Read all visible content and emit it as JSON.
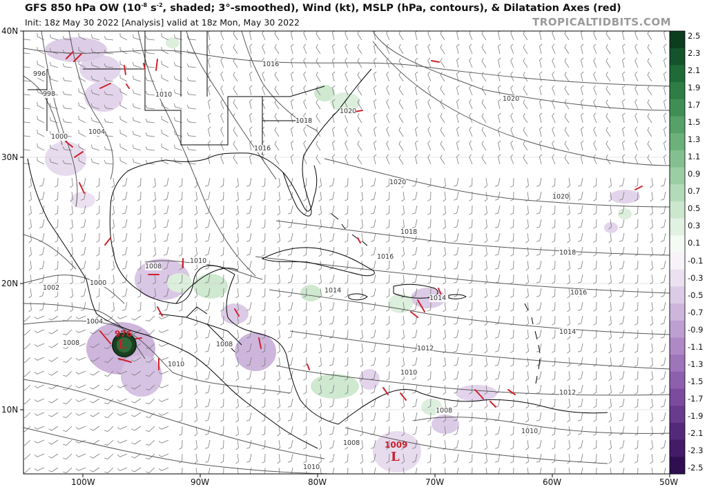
{
  "header": {
    "title_main": "GFS 850 hPa OW (10",
    "title_exp": "-8",
    "title_mid": " s",
    "title_exp2": "-2",
    "title_rest": ", shaded; 3°-smoothed), Wind (kt), MSLP (hPa, contours), & Dilatation Axes (red)",
    "subtitle": "Init: 18z May 30 2022  [Analysis]   valid at 18z Mon, May 30 2022",
    "brand": "TROPICALTIDBITS.COM"
  },
  "axes": {
    "lat_labels": [
      "40N",
      "30N",
      "20N",
      "10N"
    ],
    "lon_labels": [
      "100W",
      "90W",
      "80W",
      "70W",
      "60W",
      "50W"
    ]
  },
  "colorbar": {
    "labels": [
      "2.5",
      "2.3",
      "2.1",
      "1.9",
      "1.7",
      "1.5",
      "1.3",
      "1.1",
      "0.9",
      "0.7",
      "0.5",
      "0.3",
      "0.1",
      "-0.1",
      "-0.3",
      "-0.5",
      "-0.7",
      "-0.9",
      "-1.1",
      "-1.3",
      "-1.5",
      "-1.7",
      "-1.9",
      "-2.1",
      "-2.3",
      "-2.5"
    ],
    "positive_colors": [
      "#0b3d1e",
      "#14542b",
      "#1f6b37",
      "#2e7d45",
      "#3f8f55",
      "#55a167",
      "#6cb17a",
      "#84c08f",
      "#9ccea4",
      "#b4dbb9",
      "#cbe7ce",
      "#e1f1e2",
      "#f4faf4"
    ],
    "negative_colors": [
      "#f7f3f9",
      "#ebe1f0",
      "#dccbe6",
      "#cdb5dc",
      "#bd9fd1",
      "#ae89c6",
      "#9e74ba",
      "#8d60ad",
      "#7b4c9d",
      "#683b8c",
      "#55297a",
      "#431b67",
      "#2f0f52"
    ]
  },
  "pressure_labels": [
    {
      "text": "996"
    },
    {
      "text": "998"
    },
    {
      "text": "1000"
    },
    {
      "text": "1004"
    },
    {
      "text": "1010"
    },
    {
      "text": "1016"
    },
    {
      "text": "1018"
    },
    {
      "text": "1016"
    },
    {
      "text": "1020"
    },
    {
      "text": "1020"
    },
    {
      "text": "1020"
    },
    {
      "text": "1020"
    },
    {
      "text": "1018"
    },
    {
      "text": "1018"
    },
    {
      "text": "1016"
    },
    {
      "text": "1016"
    },
    {
      "text": "1014"
    },
    {
      "text": "1014"
    },
    {
      "text": "1014"
    },
    {
      "text": "1012"
    },
    {
      "text": "1012"
    },
    {
      "text": "1010"
    },
    {
      "text": "1010"
    },
    {
      "text": "1010"
    },
    {
      "text": "1008"
    },
    {
      "text": "1008"
    },
    {
      "text": "1008"
    },
    {
      "text": "1008"
    },
    {
      "text": "1004"
    },
    {
      "text": "1002"
    },
    {
      "text": "1000"
    },
    {
      "text": "1010"
    },
    {
      "text": "1010"
    },
    {
      "text": "1008"
    }
  ],
  "lows": [
    {
      "letter": "L",
      "pressure": "976"
    },
    {
      "letter": "L",
      "pressure": "1009"
    }
  ],
  "colors": {
    "dilatation": "#d0202a",
    "coast": "#000000",
    "isobar": "#555555",
    "barb": "#777777"
  }
}
